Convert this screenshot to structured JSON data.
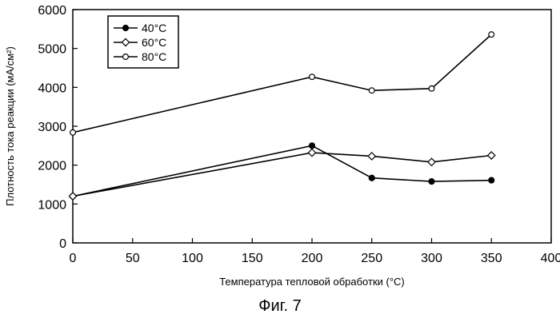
{
  "chart_data": {
    "type": "line",
    "title": "",
    "xlabel": "Температура тепловой обработки (°C)",
    "ylabel": "Плотность тока реакции (мА/см²)",
    "xlim": [
      0,
      400
    ],
    "ylim": [
      0,
      6000
    ],
    "xticks": [
      0,
      50,
      100,
      150,
      200,
      250,
      300,
      350,
      400
    ],
    "yticks": [
      0,
      1000,
      2000,
      3000,
      4000,
      5000,
      6000
    ],
    "grid": false,
    "legend_position": "top-left",
    "series": [
      {
        "name": "40°C",
        "marker": "filled-circle",
        "x": [
          0,
          200,
          250,
          300,
          350
        ],
        "y": [
          1200,
          2500,
          1670,
          1580,
          1610
        ]
      },
      {
        "name": "60°C",
        "marker": "open-diamond",
        "x": [
          0,
          200,
          250,
          300,
          350
        ],
        "y": [
          1200,
          2320,
          2230,
          2080,
          2250
        ]
      },
      {
        "name": "80°C",
        "marker": "open-circle",
        "x": [
          0,
          200,
          250,
          300,
          350
        ],
        "y": [
          2840,
          4270,
          3920,
          3970,
          5360
        ]
      }
    ]
  },
  "caption": "Фиг. 7"
}
